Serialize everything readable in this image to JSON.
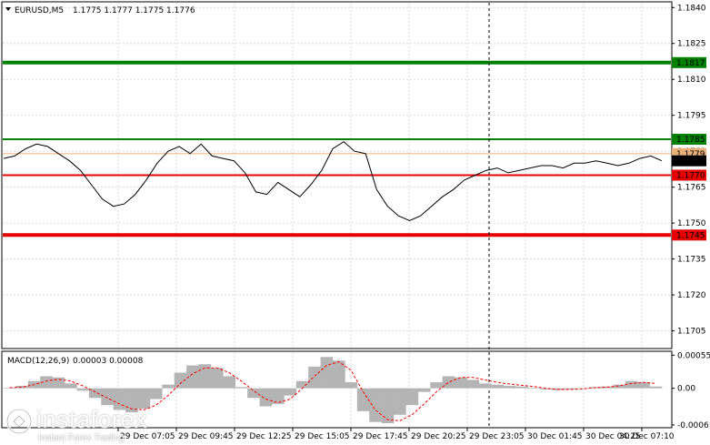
{
  "main_header": {
    "symbol_label": "EURUSD,M5",
    "ohlc": "1.1775 1.1777 1.1775 1.1776"
  },
  "macd_header": {
    "label": "MACD(12,26,9)",
    "values": "0.00003 0.00008"
  },
  "watermark": {
    "brand": "instaforex",
    "tagline": "Instant Forex Trading"
  },
  "colors": {
    "grid": "#dcdcdc",
    "price_line": "#000000",
    "support_red": "#e60000",
    "resistance_green": "#008000",
    "bid_line": "#e9b07a",
    "macd_hist": "#b4b4b4",
    "macd_signal": "#ff0000"
  },
  "chart_data": [
    {
      "type": "line",
      "panel": "price",
      "price_axis": {
        "ticks": [
          "1.1840",
          "1.1825",
          "1.1810",
          "1.1795",
          "1.1780",
          "1.1765",
          "1.1750",
          "1.1735",
          "1.1720",
          "1.1705"
        ],
        "range": [
          1.1698,
          1.1842
        ]
      },
      "time_axis": [
        "29 Dec 07:05",
        "29 Dec 09:45",
        "29 Dec 12:25",
        "29 Dec 15:05",
        "29 Dec 17:45",
        "29 Dec 20:25",
        "29 Dec 23:05",
        "30 Dec 01:45",
        "30 Dec 04:25",
        "30 Dec 07:10"
      ],
      "series_close": [
        1.1777,
        1.1778,
        1.1781,
        1.1783,
        1.1782,
        1.1779,
        1.1776,
        1.1772,
        1.1766,
        1.176,
        1.1757,
        1.1758,
        1.1762,
        1.1768,
        1.1775,
        1.178,
        1.1782,
        1.1779,
        1.1783,
        1.1778,
        1.1777,
        1.1776,
        1.1771,
        1.1763,
        1.1762,
        1.1767,
        1.1764,
        1.1761,
        1.1766,
        1.1772,
        1.1781,
        1.1784,
        1.178,
        1.1779,
        1.1764,
        1.1757,
        1.1753,
        1.1751,
        1.1753,
        1.1757,
        1.1761,
        1.1764,
        1.1768,
        1.177,
        1.1772,
        1.1773,
        1.1771,
        1.1772,
        1.1773,
        1.1774,
        1.1774,
        1.1773,
        1.1775,
        1.1775,
        1.1776,
        1.1775,
        1.1774,
        1.1775,
        1.1777,
        1.1778,
        1.1776
      ],
      "levels": [
        {
          "label": "1.1817",
          "value": 1.1817,
          "color": "#008000"
        },
        {
          "label": "1.1785",
          "value": 1.1785,
          "color": "#008000"
        },
        {
          "label": "1.1779",
          "value": 1.1779,
          "color": "#e9b07a"
        },
        {
          "label": "1.1776",
          "value": 1.1776,
          "color": "#000000"
        },
        {
          "label": "1.1770",
          "value": 1.177,
          "color": "#e60000"
        },
        {
          "label": "1.1745",
          "value": 1.1745,
          "color": "#e60000"
        }
      ]
    },
    {
      "type": "bar",
      "panel": "macd",
      "axis_ticks": [
        "0.00055",
        "0.00",
        "-0.00061"
      ],
      "range": [
        -0.00064,
        0.0006
      ],
      "histogram": [
        1e-05,
        4e-05,
        0.00012,
        0.0002,
        0.00018,
        8e-05,
        -4e-05,
        -0.00016,
        -0.00028,
        -0.00036,
        -0.0004,
        -0.00034,
        -0.00018,
        6e-05,
        0.00026,
        0.00038,
        0.0004,
        0.00034,
        0.0002,
        2e-05,
        -0.00016,
        -0.0003,
        -0.00026,
        -0.00012,
        0.00012,
        0.00036,
        0.00052,
        0.00046,
        0.0001,
        -0.00038,
        -0.00056,
        -0.00058,
        -0.00044,
        -0.00028,
        -6e-05,
        0.0001,
        0.0002,
        0.00018,
        0.00014,
        8e-05,
        6e-05,
        4e-05,
        3e-05,
        1e-05,
        -2e-05,
        -3e-05,
        -2e-05,
        0.0,
        2e-05,
        3e-05,
        6e-05,
        0.00012,
        0.0001,
        3e-05
      ],
      "signal": [
        1e-05,
        2e-05,
        6e-05,
        0.00012,
        0.00015,
        0.00012,
        4e-05,
        -6e-05,
        -0.00016,
        -0.00026,
        -0.00034,
        -0.00036,
        -0.00028,
        -0.00012,
        8e-05,
        0.00024,
        0.00034,
        0.00034,
        0.00026,
        0.00012,
        -4e-05,
        -0.00018,
        -0.00024,
        -0.00018,
        0.0,
        0.0002,
        0.00038,
        0.00044,
        0.0003,
        -6e-05,
        -0.00036,
        -0.00052,
        -0.00054,
        -0.00044,
        -0.00026,
        -6e-05,
        0.0001,
        0.00018,
        0.00018,
        0.00014,
        0.0001,
        7e-05,
        5e-05,
        3e-05,
        0.0,
        -2e-05,
        -2e-05,
        -1e-05,
        1e-05,
        2e-05,
        4e-05,
        8e-05,
        0.0001,
        8e-05
      ]
    }
  ]
}
